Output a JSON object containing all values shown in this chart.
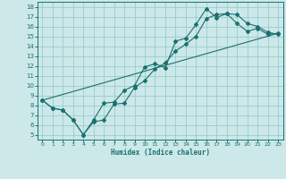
{
  "xlabel": "Humidex (Indice chaleur)",
  "xlim": [
    -0.5,
    23.5
  ],
  "ylim": [
    4.5,
    18.5
  ],
  "xticks": [
    0,
    1,
    2,
    3,
    4,
    5,
    6,
    7,
    8,
    9,
    10,
    11,
    12,
    13,
    14,
    15,
    16,
    17,
    18,
    19,
    20,
    21,
    22,
    23
  ],
  "yticks": [
    5,
    6,
    7,
    8,
    9,
    10,
    11,
    12,
    13,
    14,
    15,
    16,
    17,
    18
  ],
  "background_color": "#cce8e8",
  "grid_color": "#99cccc",
  "line_color": "#1a7070",
  "line1_x": [
    0,
    1,
    2,
    3,
    4,
    5,
    6,
    7,
    8,
    9,
    10,
    11,
    12,
    13,
    14,
    15,
    16,
    17,
    18,
    19,
    20,
    21,
    22,
    23
  ],
  "line1_y": [
    8.5,
    7.7,
    7.5,
    6.5,
    5.0,
    6.5,
    8.2,
    8.3,
    9.5,
    10.0,
    11.9,
    12.2,
    11.8,
    14.5,
    14.8,
    16.2,
    17.8,
    16.9,
    17.3,
    16.3,
    15.5,
    15.8,
    15.2,
    15.3
  ],
  "line2_x": [
    0,
    1,
    2,
    3,
    4,
    5,
    6,
    7,
    8,
    9,
    10,
    11,
    12,
    13,
    14,
    15,
    16,
    17,
    18,
    19,
    20,
    21,
    22,
    23
  ],
  "line2_y": [
    8.5,
    7.7,
    7.5,
    6.5,
    5.0,
    6.3,
    6.5,
    8.1,
    8.2,
    9.8,
    10.5,
    11.7,
    12.3,
    13.5,
    14.2,
    15.0,
    16.8,
    17.2,
    17.3,
    17.2,
    16.3,
    16.0,
    15.4,
    15.2
  ],
  "line3_x": [
    0,
    23
  ],
  "line3_y": [
    8.5,
    15.3
  ]
}
